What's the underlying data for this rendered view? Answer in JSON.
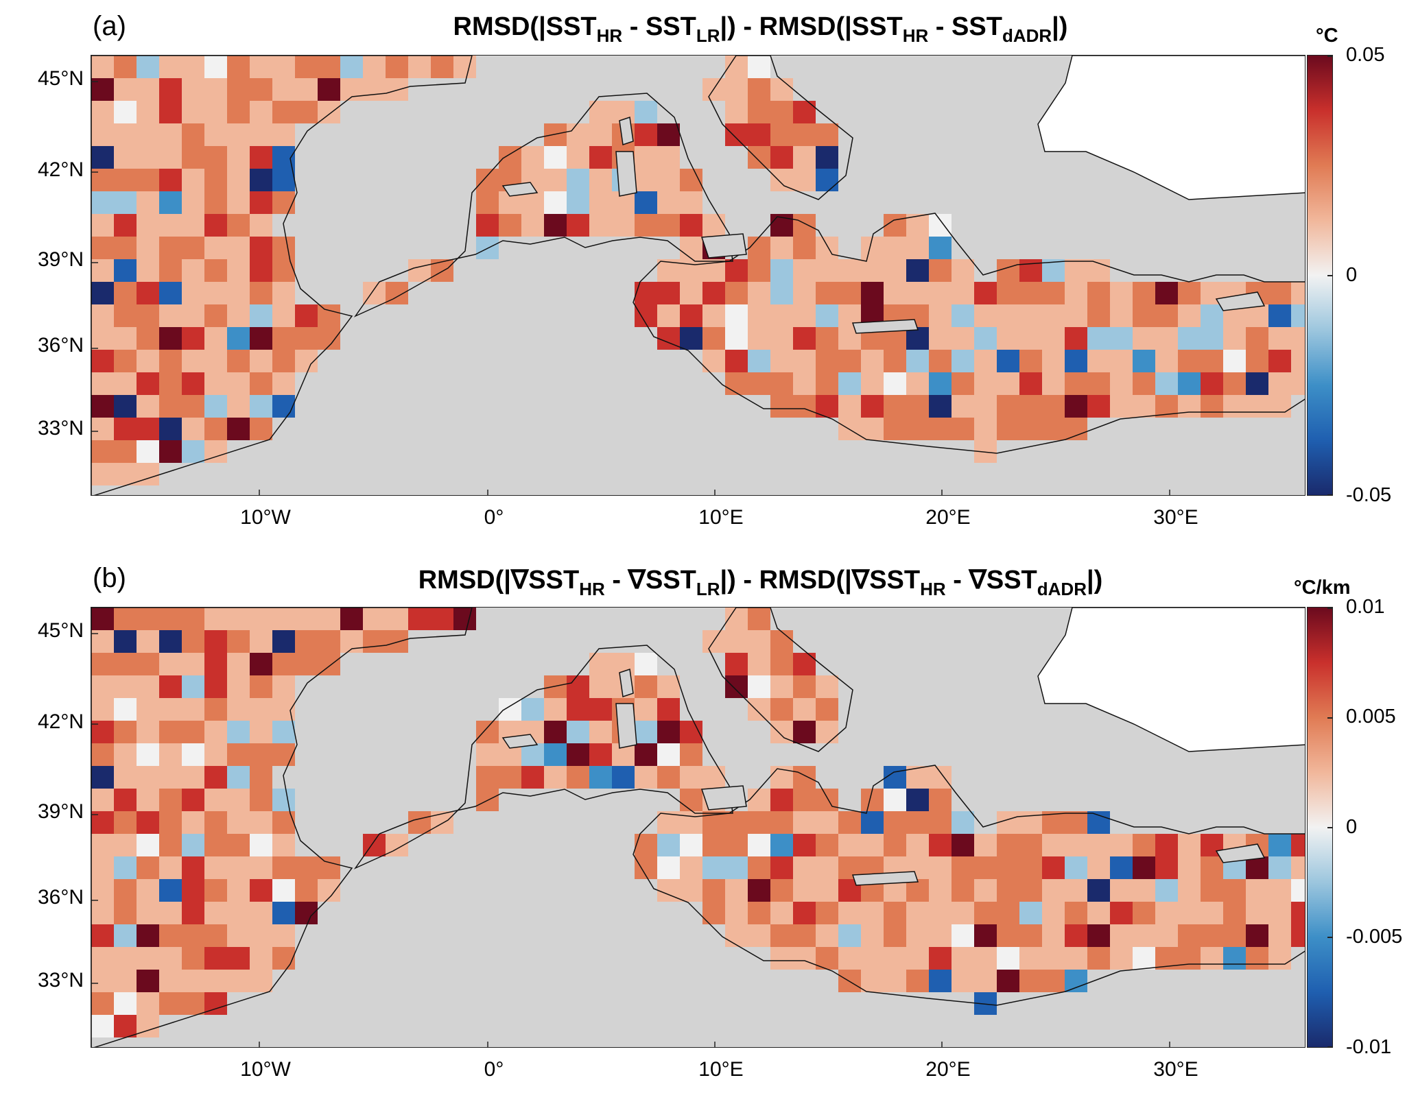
{
  "panels": [
    {
      "id": "a",
      "letter": "(a)",
      "title_parts": [
        "RMSD(|SST",
        "HR",
        " - SST",
        "LR",
        "|) - RMSD(|SST",
        "HR",
        " - SST",
        "dADR",
        "|)"
      ],
      "colorbar": {
        "unit": "°C",
        "ticks": [
          "0.05",
          "0",
          "-0.05"
        ],
        "min": -0.05,
        "max": 0.05
      },
      "field_seed": 7
    },
    {
      "id": "b",
      "letter": "(b)",
      "title_parts": [
        "RMSD(|∇SST",
        "HR",
        " - ∇SST",
        "LR",
        "|) - RMSD(|∇SST",
        "HR",
        " - ∇SST",
        "dADR",
        "|)"
      ],
      "colorbar": {
        "unit": "°C/km",
        "ticks": [
          "0.01",
          "0.005",
          "0",
          "-0.005",
          "-0.01"
        ],
        "min": -0.01,
        "max": 0.01
      },
      "field_seed": 19
    }
  ],
  "lat_labels": [
    "45°N",
    "42°N",
    "39°N",
    "36°N",
    "33°N"
  ],
  "lon_labels": [
    "10°W",
    "0°",
    "10°E",
    "20°E",
    "30°E"
  ],
  "colors": {
    "land": "#d3d3d3",
    "water_white": "#ffffff",
    "coast": "#111111",
    "colormap": [
      "#1a2a6c",
      "#1f5fb0",
      "#3d8fc7",
      "#9cc6de",
      "#f2f2f2",
      "#f1b79b",
      "#e07b54",
      "#c9302c",
      "#6b0a1e"
    ]
  }
}
